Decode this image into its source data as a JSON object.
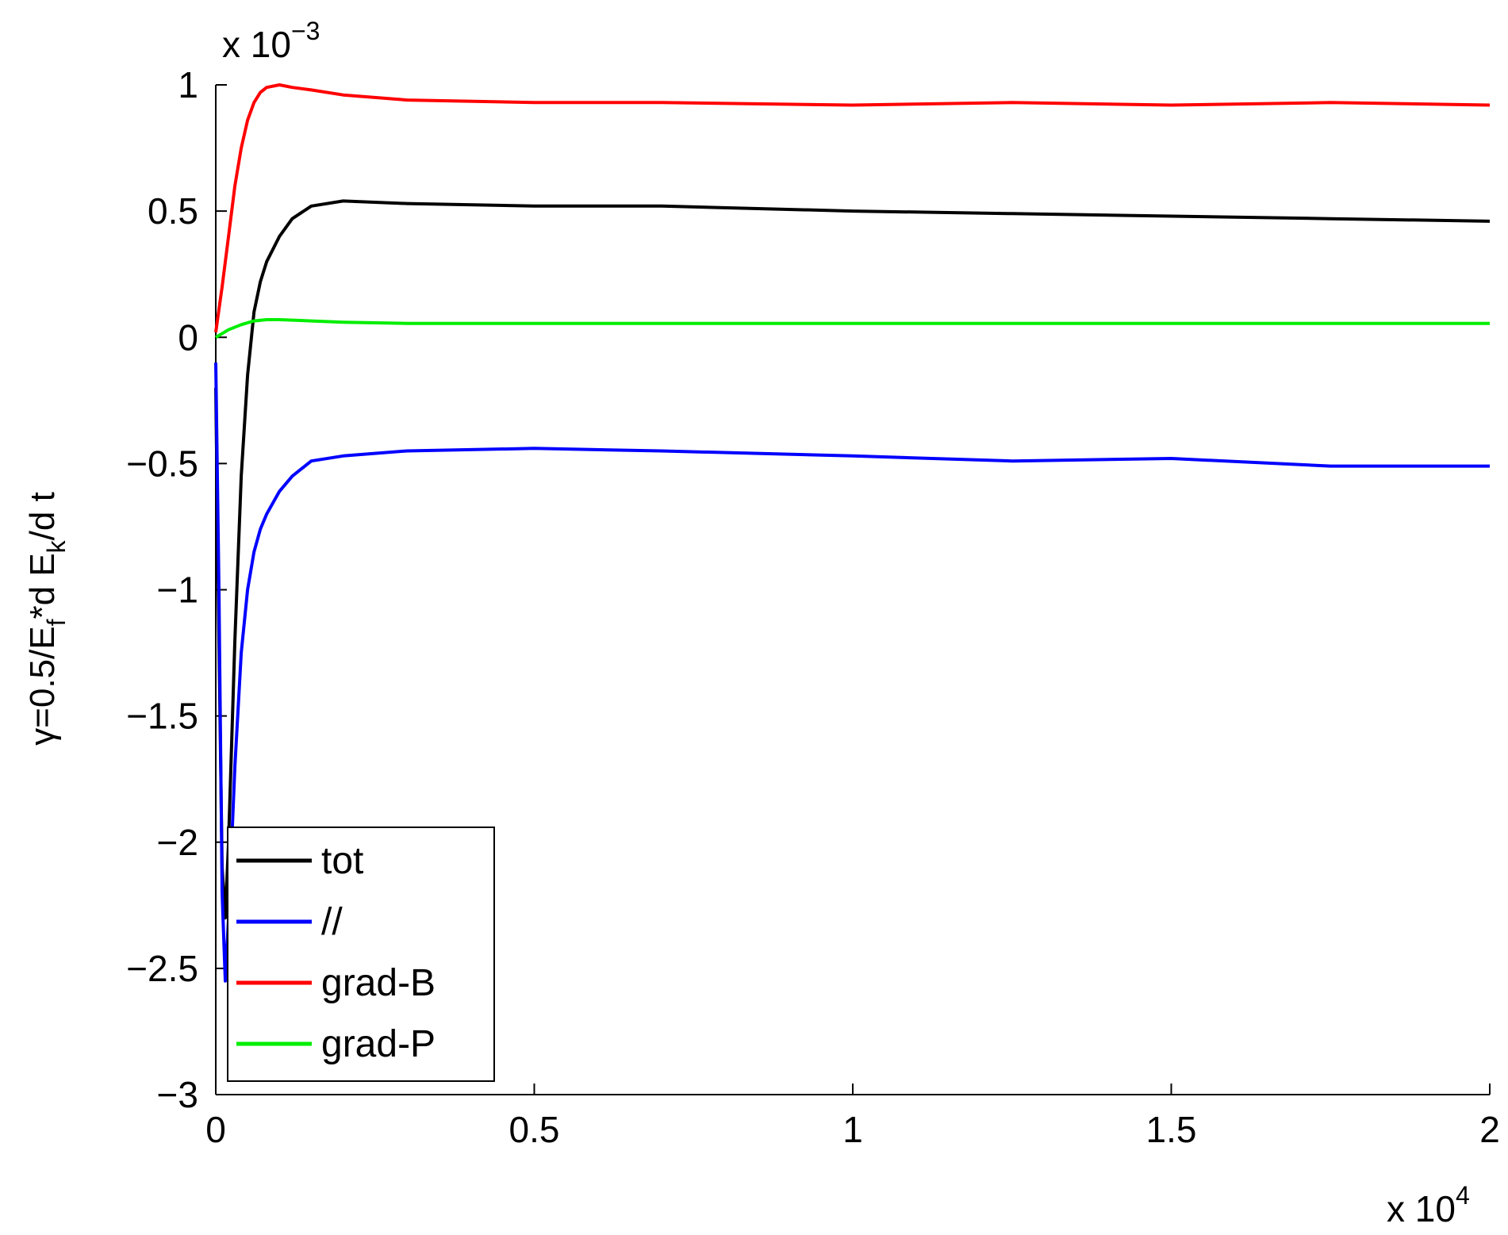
{
  "chart_data": {
    "type": "line",
    "title": "",
    "xlabel": "",
    "ylabel_parts": {
      "main": "γ=0.5/E",
      "sub1": "f",
      "mid": "*d E",
      "sub2": "k",
      "end": "/d t"
    },
    "x_multiplier": {
      "base": "x 10",
      "exp": "4"
    },
    "y_multiplier": {
      "base": "x 10",
      "exp": "−3"
    },
    "xlim": [
      0,
      2
    ],
    "ylim": [
      -3,
      1
    ],
    "xticks": [
      0,
      0.5,
      1,
      1.5,
      2
    ],
    "xtick_labels": [
      "0",
      "0.5",
      "1",
      "1.5",
      "2"
    ],
    "yticks": [
      1,
      0.5,
      0,
      -0.5,
      -1,
      -1.5,
      -2,
      -2.5,
      -3
    ],
    "ytick_labels": [
      "1",
      "0.5",
      "0",
      "−0.5",
      "−1",
      "−1.5",
      "−2",
      "−2.5",
      "−3"
    ],
    "grid": false,
    "legend_position": "bottom-left",
    "series": [
      {
        "name": "tot",
        "color": "#000000",
        "x": [
          0,
          0.005,
          0.01,
          0.015,
          0.02,
          0.03,
          0.04,
          0.05,
          0.06,
          0.07,
          0.08,
          0.1,
          0.12,
          0.15,
          0.2,
          0.3,
          0.5,
          0.7,
          1.0,
          1.25,
          1.5,
          1.75,
          2.0
        ],
        "y": [
          -0.2,
          -1.2,
          -2.1,
          -2.3,
          -2.0,
          -1.2,
          -0.55,
          -0.15,
          0.1,
          0.22,
          0.3,
          0.4,
          0.47,
          0.52,
          0.54,
          0.53,
          0.52,
          0.52,
          0.5,
          0.49,
          0.48,
          0.47,
          0.46
        ]
      },
      {
        "name": "//",
        "color": "#0000ff",
        "x": [
          0,
          0.005,
          0.01,
          0.015,
          0.02,
          0.03,
          0.04,
          0.05,
          0.06,
          0.07,
          0.08,
          0.1,
          0.12,
          0.15,
          0.2,
          0.3,
          0.5,
          0.7,
          1.0,
          1.25,
          1.5,
          1.75,
          2.0
        ],
        "y": [
          -0.1,
          -1.0,
          -2.2,
          -2.55,
          -2.3,
          -1.7,
          -1.25,
          -1.0,
          -0.85,
          -0.76,
          -0.7,
          -0.61,
          -0.55,
          -0.49,
          -0.47,
          -0.45,
          -0.44,
          -0.45,
          -0.47,
          -0.49,
          -0.48,
          -0.51,
          -0.51
        ]
      },
      {
        "name": "grad-B",
        "color": "#ff0000",
        "x": [
          0,
          0.01,
          0.02,
          0.03,
          0.04,
          0.05,
          0.06,
          0.07,
          0.08,
          0.1,
          0.12,
          0.15,
          0.2,
          0.3,
          0.5,
          0.7,
          1.0,
          1.25,
          1.5,
          1.75,
          2.0
        ],
        "y": [
          0.02,
          0.2,
          0.4,
          0.6,
          0.75,
          0.86,
          0.93,
          0.97,
          0.99,
          1.0,
          0.99,
          0.98,
          0.96,
          0.94,
          0.93,
          0.93,
          0.92,
          0.93,
          0.92,
          0.93,
          0.92
        ]
      },
      {
        "name": "grad-P",
        "color": "#00ee00",
        "x": [
          0,
          0.02,
          0.04,
          0.06,
          0.08,
          0.1,
          0.15,
          0.2,
          0.3,
          0.5,
          0.7,
          1.0,
          1.5,
          2.0
        ],
        "y": [
          0.0,
          0.03,
          0.05,
          0.065,
          0.07,
          0.07,
          0.065,
          0.06,
          0.055,
          0.055,
          0.055,
          0.055,
          0.055,
          0.055
        ]
      }
    ]
  }
}
